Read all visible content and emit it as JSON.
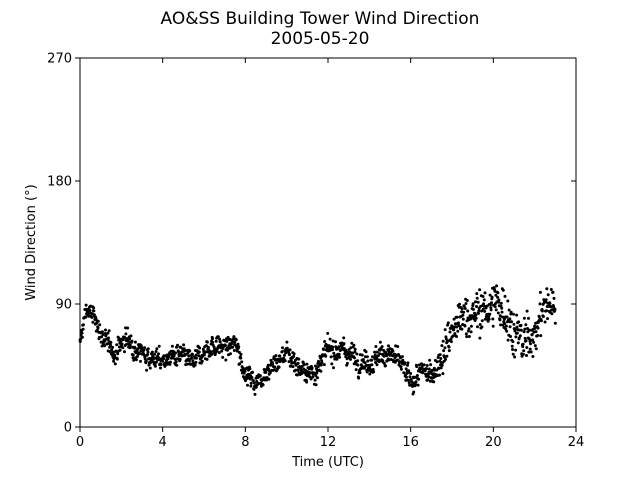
{
  "chart_data": {
    "type": "scatter",
    "title": "AO&SS Building Tower Wind Direction",
    "subtitle": "2005-05-20",
    "xlabel": "Time (UTC)",
    "ylabel": "Wind Direction (°)",
    "xlim": [
      0,
      24
    ],
    "ylim": [
      0,
      270
    ],
    "xticks": [
      0,
      4,
      8,
      12,
      16,
      20,
      24
    ],
    "yticks": [
      0,
      90,
      180,
      270
    ],
    "xtick_labels": [
      "0",
      "4",
      "8",
      "12",
      "16",
      "20",
      "24"
    ],
    "ytick_labels": [
      "0",
      "90",
      "180",
      "270"
    ],
    "grid": false,
    "marker_color": "#000000",
    "trend": {
      "x": [
        0.0,
        0.3,
        0.7,
        1.2,
        1.7,
        2.2,
        2.7,
        3.3,
        4.0,
        4.5,
        5.0,
        5.5,
        6.0,
        6.5,
        7.0,
        7.6,
        8.0,
        8.5,
        9.0,
        9.5,
        10.0,
        10.5,
        11.0,
        11.5,
        12.0,
        12.5,
        13.0,
        13.5,
        14.0,
        14.5,
        15.0,
        15.5,
        16.0,
        16.5,
        17.0,
        17.5,
        18.0,
        18.5,
        19.0,
        19.5,
        20.0,
        20.5,
        21.0,
        21.5,
        22.0,
        22.5,
        23.0
      ],
      "y": [
        60,
        86,
        80,
        62,
        55,
        65,
        58,
        52,
        48,
        52,
        50,
        46,
        56,
        60,
        58,
        60,
        40,
        32,
        42,
        46,
        55,
        46,
        38,
        44,
        55,
        58,
        54,
        50,
        48,
        52,
        54,
        46,
        32,
        40,
        38,
        52,
        70,
        80,
        82,
        85,
        90,
        88,
        70,
        62,
        70,
        88,
        92
      ]
    },
    "spread": {
      "x": [
        0,
        17,
        18,
        21,
        22,
        23
      ],
      "y": [
        6,
        7,
        13,
        16,
        14,
        11
      ]
    },
    "n_points": 1400,
    "x_range_points": [
      0.0,
      23.0
    ]
  }
}
